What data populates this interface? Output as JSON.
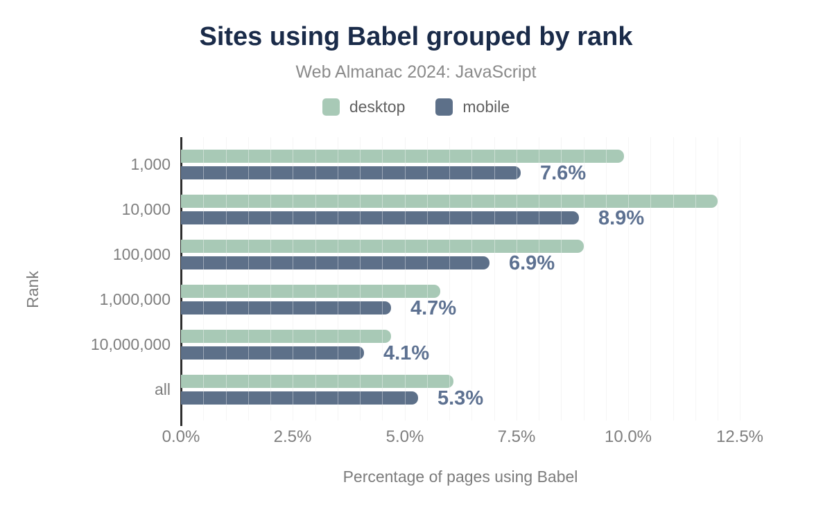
{
  "title": "Sites using Babel grouped by rank",
  "subtitle": "Web Almanac 2024: JavaScript",
  "chart_data": {
    "type": "bar",
    "orientation": "horizontal",
    "title": "Sites using Babel grouped by rank",
    "subtitle": "Web Almanac 2024: JavaScript",
    "categories": [
      "1,000",
      "10,000",
      "100,000",
      "1,000,000",
      "10,000,000",
      "all"
    ],
    "series": [
      {
        "name": "desktop",
        "values": [
          9.9,
          12.0,
          9.0,
          5.8,
          4.7,
          6.1
        ]
      },
      {
        "name": "mobile",
        "values": [
          7.6,
          8.9,
          6.9,
          4.7,
          4.1,
          5.3
        ]
      }
    ],
    "data_labels": [
      "7.6%",
      "8.9%",
      "6.9%",
      "4.7%",
      "4.1%",
      "5.3%"
    ],
    "data_labels_series": "mobile",
    "xlabel": "Percentage of pages using Babel",
    "ylabel": "Rank",
    "x_ticks": [
      "0.0%",
      "2.5%",
      "5.0%",
      "7.5%",
      "10.0%",
      "12.5%"
    ],
    "xlim": [
      0,
      12.5
    ],
    "grid": "vertical minor gridlines every 0.5%",
    "legend_position": "top center"
  },
  "colors": {
    "desktop_bar": "#a8c9b6",
    "mobile_bar": "#5d7089",
    "title_text": "#1a2b49",
    "subtitle_text": "#8a8a8a",
    "legend_text": "#616161",
    "axis_tick_text": "#7e7e7e",
    "axis_title_text": "#7c7c7c",
    "value_label_text": "#5d7191",
    "gridline": "#efefef",
    "axis_line": "#2e2e2e"
  }
}
